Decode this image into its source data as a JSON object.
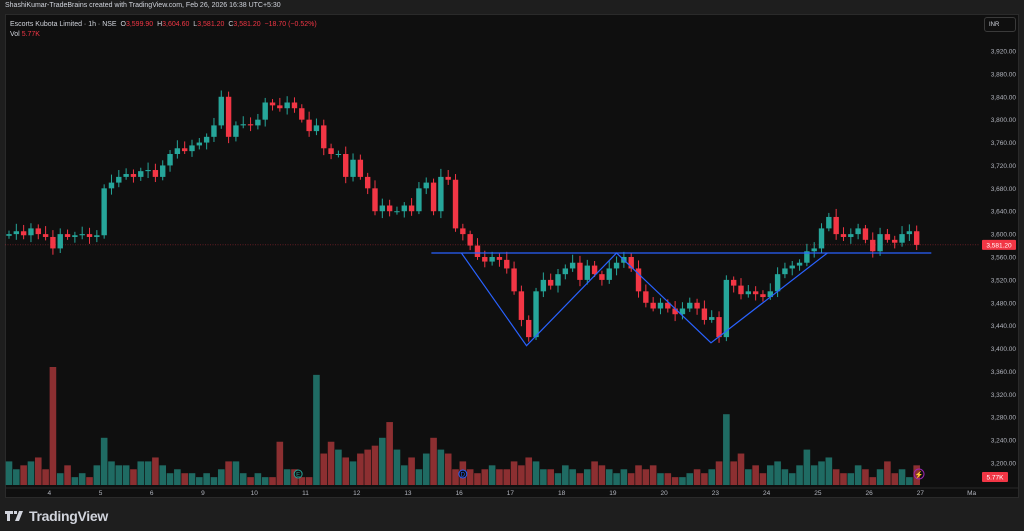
{
  "credit": "ShashiKumar-TradeBrains created with TradingView.com, Feb 26, 2026 16:38 UTC+5:30",
  "legend": {
    "symbol": "Escorts Kubota Limited · 1h · NSE",
    "o_label": "O",
    "o": "3,599.90",
    "h_label": "H",
    "h": "3,604.60",
    "l_label": "L",
    "l": "3,581.20",
    "c_label": "C",
    "c": "3,581.20",
    "change": "−18.70 (−0.52%)",
    "vol_label": "Vol",
    "vol": "5.77K"
  },
  "currency_button": "INR",
  "footer_brand": "TradingView",
  "colors": {
    "up": "#26a69a",
    "down": "#f23645",
    "vol_up": "#1f6b63",
    "vol_down": "#8c2f31",
    "pattern": "#2962ff",
    "bg": "#0f0f0f"
  },
  "chart_data": {
    "type": "candlestick",
    "title": "Escorts Kubota Limited · 1h · NSE",
    "ylim": [
      3200,
      3920
    ],
    "y_ticks": [
      "3,920.00",
      "3,880.00",
      "3,840.00",
      "3,800.00",
      "3,760.00",
      "3,720.00",
      "3,680.00",
      "3,640.00",
      "3,600.00",
      "3,560.00",
      "3,520.00",
      "3,480.00",
      "3,440.00",
      "3,400.00",
      "3,360.00",
      "3,320.00",
      "3,280.00",
      "3,240.00",
      "3,200.00"
    ],
    "x_ticks": [
      {
        "label": "4",
        "i": 5.5
      },
      {
        "label": "5",
        "i": 12.5
      },
      {
        "label": "6",
        "i": 19.5
      },
      {
        "label": "9",
        "i": 26.5
      },
      {
        "label": "10",
        "i": 33.5
      },
      {
        "label": "11",
        "i": 40.5
      },
      {
        "label": "12",
        "i": 47.5
      },
      {
        "label": "13",
        "i": 54.5
      },
      {
        "label": "16",
        "i": 61.5
      },
      {
        "label": "17",
        "i": 68.5
      },
      {
        "label": "18",
        "i": 75.5
      },
      {
        "label": "19",
        "i": 82.5
      },
      {
        "label": "20",
        "i": 89.5
      },
      {
        "label": "23",
        "i": 96.5
      },
      {
        "label": "24",
        "i": 103.5
      },
      {
        "label": "25",
        "i": 110.5
      },
      {
        "label": "26",
        "i": 117.5
      },
      {
        "label": "27",
        "i": 124.5
      },
      {
        "label": "Ma",
        "i": 131.5
      }
    ],
    "last_price": "3,581.20",
    "last_price_value": 3581.2,
    "last_volume": "5.77K",
    "closes": [
      3600,
      3605,
      3598,
      3610,
      3600,
      3595,
      3575,
      3600,
      3595,
      3598,
      3600,
      3595,
      3598,
      3680,
      3690,
      3700,
      3705,
      3700,
      3710,
      3712,
      3700,
      3720,
      3740,
      3750,
      3745,
      3755,
      3760,
      3770,
      3790,
      3840,
      3770,
      3790,
      3792,
      3790,
      3800,
      3830,
      3825,
      3820,
      3830,
      3820,
      3800,
      3780,
      3790,
      3750,
      3740,
      3740,
      3700,
      3730,
      3700,
      3680,
      3640,
      3650,
      3640,
      3640,
      3650,
      3640,
      3680,
      3690,
      3640,
      3700,
      3695,
      3610,
      3600,
      3580,
      3560,
      3552,
      3560,
      3555,
      3540,
      3500,
      3450,
      3420,
      3500,
      3520,
      3510,
      3530,
      3540,
      3550,
      3520,
      3545,
      3530,
      3520,
      3540,
      3550,
      3560,
      3540,
      3500,
      3480,
      3470,
      3480,
      3470,
      3460,
      3470,
      3480,
      3470,
      3450,
      3455,
      3420,
      3520,
      3510,
      3495,
      3500,
      3495,
      3490,
      3500,
      3530,
      3540,
      3545,
      3550,
      3570,
      3575,
      3610,
      3630,
      3600,
      3595,
      3600,
      3610,
      3590,
      3570,
      3600,
      3590,
      3585,
      3600,
      3605,
      3581.2
    ],
    "volumes_k": [
      6,
      4,
      5,
      6,
      7,
      4,
      30,
      3,
      5,
      2,
      3,
      2,
      5,
      12,
      6,
      5,
      5,
      4,
      6,
      6,
      7,
      5,
      3,
      4,
      3,
      3,
      2,
      3,
      2,
      4,
      6,
      6,
      3,
      2,
      3,
      2,
      2,
      11,
      4,
      4,
      2,
      2,
      28,
      8,
      11,
      9,
      7,
      6,
      8,
      9,
      10,
      12,
      16,
      9,
      5,
      7,
      4,
      8,
      12,
      9,
      8,
      4,
      6,
      4,
      3,
      4,
      5,
      4,
      4,
      6,
      5,
      7,
      6,
      4,
      4,
      3,
      5,
      4,
      3,
      4,
      6,
      5,
      4,
      3,
      4,
      3,
      5,
      4,
      5,
      3,
      3,
      2,
      2,
      3,
      4,
      3,
      4,
      6,
      18,
      6,
      8,
      4,
      5,
      3,
      5,
      6,
      4,
      3,
      5,
      9,
      5,
      6,
      7,
      4,
      3,
      3,
      5,
      4,
      2,
      4,
      6,
      3,
      4,
      2,
      5
    ],
    "pattern": {
      "name": "Inverse head and shoulders",
      "neckline": {
        "price": 3567,
        "from_i": 57.7,
        "to_i": 126
      },
      "zigzag": [
        [
          61.8,
          3567
        ],
        [
          70.7,
          3405
        ],
        [
          83,
          3567
        ],
        [
          95.9,
          3410
        ],
        [
          111.8,
          3567
        ]
      ]
    },
    "markers": [
      {
        "label": "E",
        "i": 39.5
      },
      {
        "label": "D",
        "i": 62
      }
    ]
  }
}
